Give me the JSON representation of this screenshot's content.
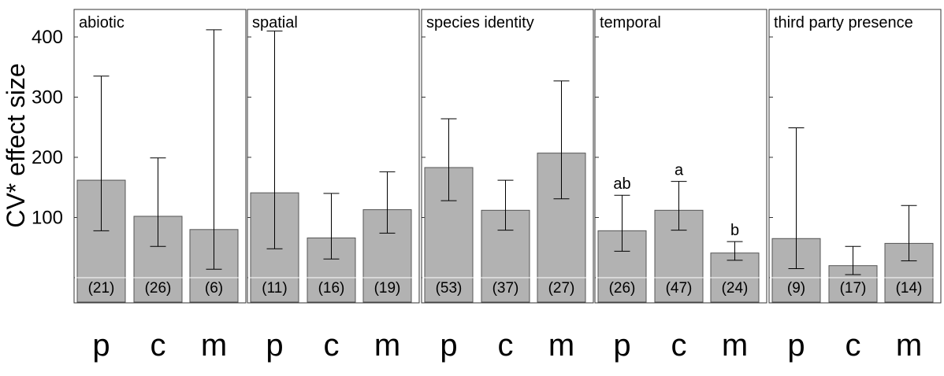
{
  "chart_data": {
    "type": "bar",
    "ylabel": "CV* effect size",
    "ylim": [
      -25,
      430
    ],
    "yticks": [
      0,
      100,
      200,
      300,
      400
    ],
    "bar_color": "#b2b2b2",
    "categories": [
      "p",
      "c",
      "m"
    ],
    "panels": [
      {
        "title": "abiotic",
        "values": [
          162,
          102,
          80
        ],
        "ci_low": [
          78,
          52,
          14
        ],
        "ci_high": [
          335,
          199,
          412
        ],
        "n": [
          "(21)",
          "(26)",
          "(6)"
        ],
        "letters": [
          "",
          "",
          ""
        ]
      },
      {
        "title": "spatial",
        "values": [
          141,
          66,
          113
        ],
        "ci_low": [
          48,
          31,
          74
        ],
        "ci_high": [
          410,
          140,
          176
        ],
        "n": [
          "(11)",
          "(16)",
          "(19)"
        ],
        "letters": [
          "",
          "",
          ""
        ]
      },
      {
        "title": "species identity",
        "values": [
          183,
          112,
          207
        ],
        "ci_low": [
          128,
          79,
          131
        ],
        "ci_high": [
          264,
          162,
          327
        ],
        "n": [
          "(53)",
          "(37)",
          "(27)"
        ],
        "letters": [
          "",
          "",
          ""
        ]
      },
      {
        "title": "temporal",
        "values": [
          78,
          112,
          41
        ],
        "ci_low": [
          44,
          79,
          29
        ],
        "ci_high": [
          137,
          160,
          60
        ],
        "n": [
          "(26)",
          "(47)",
          "(24)"
        ],
        "letters": [
          "ab",
          "a",
          "b"
        ]
      },
      {
        "title": "third party presence",
        "values": [
          65,
          20,
          57
        ],
        "ci_low": [
          15,
          5,
          28
        ],
        "ci_high": [
          249,
          52,
          120
        ],
        "n": [
          "(9)",
          "(17)",
          "(14)"
        ],
        "letters": [
          "",
          "",
          ""
        ]
      }
    ]
  }
}
